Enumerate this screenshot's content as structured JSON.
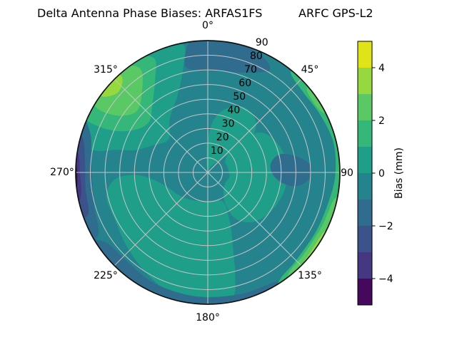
{
  "header": {
    "title_left": "Delta Antenna Phase Biases: ARFAS1FS",
    "title_right": "ARFC GPS-L2",
    "title_full": "Delta Antenna Phase Biases: ARFAS1FS        ARFC GPS-L2"
  },
  "chart_data": {
    "type": "heatmap",
    "subtype": "polar_filled_contour",
    "title": "Delta Antenna Phase Biases: ARFAS1FS        ARFC GPS-L2",
    "angular_axis": {
      "direction": "clockwise",
      "zero_location": "top",
      "tick_angles_deg": [
        0,
        45,
        90,
        135,
        180,
        225,
        270,
        315
      ],
      "tick_labels": [
        "0°",
        "45°",
        "90",
        "135°",
        "180°",
        "225°",
        "270°",
        "315°"
      ]
    },
    "radial_axis": {
      "ticks": [
        10,
        20,
        30,
        40,
        50,
        60,
        70,
        80,
        90
      ],
      "max": 90,
      "label_angle_deg": 22.5,
      "grid": true
    },
    "levels": [
      -5,
      -4,
      -3,
      -2,
      -1,
      0,
      1,
      2,
      3,
      4,
      5
    ],
    "colormap": "viridis",
    "base_fill": {
      "band": "-1 to 0 mm",
      "color": "#25838e"
    },
    "colorbar": {
      "label": "Bias (mm)",
      "vmin": -5,
      "vmax": 5,
      "tick_values": [
        4,
        2,
        0,
        -2,
        -4
      ],
      "tick_labels": [
        "4",
        "2",
        "0",
        "−2",
        "−4"
      ],
      "segment_colors_top_to_bottom": [
        "#dfe318",
        "#95d840",
        "#5ac864",
        "#35b779",
        "#1f9e89",
        "#25838e",
        "#2f6c8e",
        "#3b528b",
        "#453781",
        "#46085c"
      ],
      "segment_bands_top_to_bottom": [
        "4 to 5",
        "3 to 4",
        "2 to 3",
        "1 to 2",
        "0 to 1",
        "-1 to 0",
        "-2 to -1",
        "-3 to -2",
        "-4 to -3",
        "-5 to -4"
      ]
    },
    "regions": [
      {
        "name": "light-upper-left",
        "band": "0 to 1 mm",
        "color": "#1f9e89",
        "points": [
          [
            281,
            78
          ],
          [
            283,
            92
          ],
          [
            294,
            93
          ],
          [
            308,
            93
          ],
          [
            322,
            93
          ],
          [
            336,
            92
          ],
          [
            349,
            89
          ],
          [
            347,
            74
          ],
          [
            339,
            57
          ],
          [
            325,
            45
          ],
          [
            310,
            35
          ],
          [
            296,
            42
          ],
          [
            287,
            52
          ],
          [
            284,
            64
          ]
        ]
      },
      {
        "name": "light-center-right",
        "band": "0 to 1 mm",
        "color": "#1f9e89",
        "points": [
          [
            352,
            6
          ],
          [
            357,
            15
          ],
          [
            361,
            25
          ],
          [
            367,
            37
          ],
          [
            377,
            46
          ],
          [
            390,
            51
          ],
          [
            403,
            48
          ],
          [
            412,
            38
          ],
          [
            412,
            25
          ],
          [
            405,
            13
          ],
          [
            390,
            5
          ],
          [
            371,
            1
          ]
        ]
      },
      {
        "name": "light-right-band",
        "band": "0 to 1 mm",
        "color": "#1f9e89",
        "points": [
          [
            48,
            20
          ],
          [
            52,
            31
          ],
          [
            51,
            43
          ],
          [
            62,
            50
          ],
          [
            80,
            54
          ],
          [
            100,
            54
          ],
          [
            120,
            51
          ],
          [
            137,
            46
          ],
          [
            149,
            37
          ],
          [
            151,
            25
          ],
          [
            141,
            17
          ],
          [
            122,
            14
          ],
          [
            100,
            15
          ],
          [
            76,
            14
          ],
          [
            58,
            14
          ]
        ]
      },
      {
        "name": "light-bottom-left",
        "band": "0 to 1 mm",
        "color": "#1f9e89",
        "points": [
          [
            152,
            26
          ],
          [
            157,
            40
          ],
          [
            162,
            56
          ],
          [
            165,
            72
          ],
          [
            169,
            87
          ],
          [
            181,
            89
          ],
          [
            195,
            87
          ],
          [
            210,
            81
          ],
          [
            227,
            75
          ],
          [
            243,
            71
          ],
          [
            257,
            71
          ],
          [
            266,
            63
          ],
          [
            268,
            49
          ],
          [
            262,
            37
          ],
          [
            249,
            29
          ],
          [
            231,
            25
          ],
          [
            211,
            22
          ],
          [
            189,
            20
          ],
          [
            168,
            20
          ],
          [
            156,
            21
          ]
        ]
      },
      {
        "name": "dark-top-cap",
        "band": "-2 to -1 mm",
        "color": "#2f6c8e",
        "points": [
          [
            348,
            76
          ],
          [
            352,
            90
          ],
          [
            360,
            94
          ],
          [
            372,
            93
          ],
          [
            381,
            89
          ],
          [
            388,
            86
          ],
          [
            391,
            81
          ],
          [
            383,
            74
          ],
          [
            371,
            70
          ],
          [
            359,
            70
          ],
          [
            351,
            71
          ]
        ]
      },
      {
        "name": "dark-right-blob",
        "band": "-2 to -1 mm",
        "color": "#2f6c8e",
        "points": [
          [
            76,
            52
          ],
          [
            80,
            62
          ],
          [
            86,
            70
          ],
          [
            94,
            69
          ],
          [
            99,
            60
          ],
          [
            97,
            49
          ],
          [
            88,
            43
          ],
          [
            79,
            45
          ]
        ]
      },
      {
        "name": "dark-bottom-rim",
        "band": "-2 to -1 mm",
        "color": "#2f6c8e",
        "points": [
          [
            148,
            88
          ],
          [
            165,
            86
          ],
          [
            185,
            85
          ],
          [
            205,
            84
          ],
          [
            222,
            82
          ],
          [
            235,
            84
          ],
          [
            239,
            94
          ],
          [
            215,
            95
          ],
          [
            185,
            95
          ],
          [
            158,
            94
          ],
          [
            147,
            93
          ]
        ]
      },
      {
        "name": "dark-left-rim-1",
        "band": "-2 to -1 mm",
        "color": "#2f6c8e",
        "points": [
          [
            241,
            85
          ],
          [
            252,
            81
          ],
          [
            264,
            79
          ],
          [
            277,
            80
          ],
          [
            288,
            84
          ],
          [
            293,
            94
          ],
          [
            270,
            96
          ],
          [
            248,
            95
          ],
          [
            240,
            93
          ]
        ]
      },
      {
        "name": "dark-left-rim-2",
        "band": "-3 to -2 mm",
        "color": "#3b528b",
        "points": [
          [
            251,
            86
          ],
          [
            263,
            84
          ],
          [
            275,
            84
          ],
          [
            285,
            88
          ],
          [
            287,
            94
          ],
          [
            267,
            95
          ],
          [
            252,
            93
          ]
        ]
      },
      {
        "name": "dark-left-rim-3",
        "band": "-4 to -3 mm",
        "color": "#453781",
        "points": [
          [
            259,
            88
          ],
          [
            269,
            87
          ],
          [
            278,
            89
          ],
          [
            278,
            94
          ],
          [
            265,
            95
          ],
          [
            258,
            93
          ]
        ]
      },
      {
        "name": "dark-left-rim-4",
        "band": "-5 to -4 mm",
        "color": "#46085c",
        "points": [
          [
            263,
            90
          ],
          [
            271,
            89
          ],
          [
            275,
            91
          ],
          [
            273,
            94
          ],
          [
            264,
            93
          ]
        ]
      },
      {
        "name": "green-upper-left-outer",
        "band": "1 to 2 mm",
        "color": "#35b779",
        "points": [
          [
            293,
            87
          ],
          [
            296,
            93
          ],
          [
            307,
            94
          ],
          [
            319,
            94
          ],
          [
            330,
            91
          ],
          [
            335,
            85
          ],
          [
            330,
            72
          ],
          [
            321,
            60
          ],
          [
            311,
            53
          ],
          [
            301,
            57
          ],
          [
            294,
            70
          ]
        ]
      },
      {
        "name": "green-upper-left-core",
        "band": "2 to 3 mm",
        "color": "#5ac864",
        "points": [
          [
            300,
            85
          ],
          [
            303,
            93
          ],
          [
            314,
            94
          ],
          [
            323,
            91
          ],
          [
            327,
            83
          ],
          [
            320,
            70
          ],
          [
            311,
            64
          ],
          [
            303,
            71
          ]
        ]
      },
      {
        "name": "green-upper-left-bright",
        "band": "3 to 4 mm",
        "color": "#95d840",
        "points": [
          [
            306,
            88
          ],
          [
            308,
            93
          ],
          [
            316,
            93
          ],
          [
            318,
            87
          ],
          [
            312,
            82
          ]
        ]
      },
      {
        "name": "green-right-rim",
        "band": "1 to 2 mm",
        "color": "#35b779",
        "points": [
          [
            40,
            88
          ],
          [
            50,
            85
          ],
          [
            62,
            86
          ],
          [
            76,
            88
          ],
          [
            90,
            87
          ],
          [
            102,
            85
          ],
          [
            118,
            84
          ],
          [
            135,
            85
          ],
          [
            146,
            88
          ],
          [
            149,
            94
          ],
          [
            120,
            95
          ],
          [
            90,
            95
          ],
          [
            60,
            95
          ],
          [
            41,
            93
          ]
        ]
      },
      {
        "name": "green-right-rim-bright-a",
        "band": "2 to 3 mm",
        "color": "#5ac864",
        "points": [
          [
            50,
            88
          ],
          [
            56,
            86.5
          ],
          [
            62,
            88
          ],
          [
            63,
            93
          ],
          [
            51,
            93
          ]
        ]
      },
      {
        "name": "green-right-rim-bright-b",
        "band": "2 to 3 mm",
        "color": "#5ac864",
        "points": [
          [
            102,
            88
          ],
          [
            115,
            86
          ],
          [
            130,
            86
          ],
          [
            141,
            88
          ],
          [
            143,
            94
          ],
          [
            120,
            95
          ],
          [
            103,
            93
          ]
        ]
      },
      {
        "name": "green-right-rim-bright-c",
        "band": "3 to 4 mm",
        "color": "#95d840",
        "points": [
          [
            117,
            89
          ],
          [
            127,
            88.5
          ],
          [
            134,
            90
          ],
          [
            133,
            93
          ],
          [
            119,
            93
          ]
        ]
      }
    ],
    "grid_color": "#c6c6c6",
    "outline_color": "#111111"
  }
}
